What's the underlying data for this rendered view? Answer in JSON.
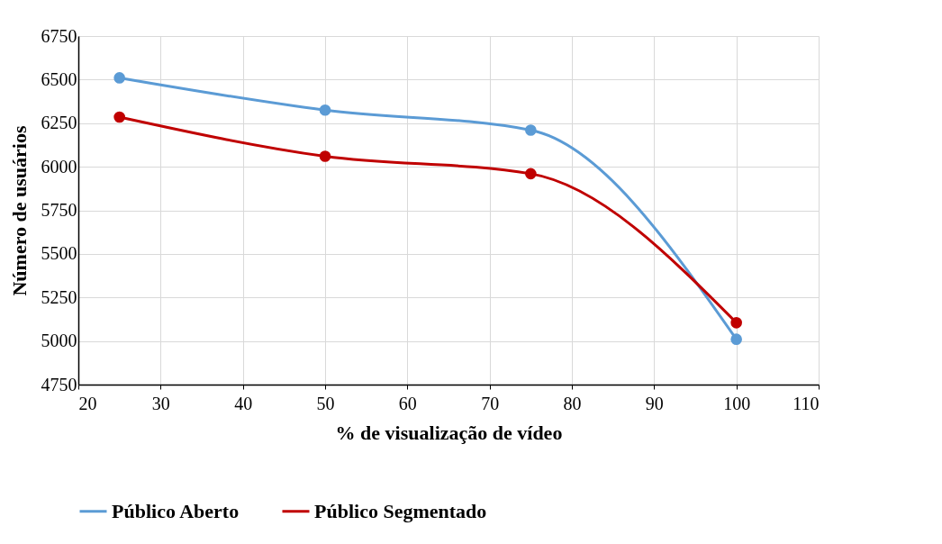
{
  "chart_data": {
    "type": "line",
    "xlabel": "% de visualização de vídeo",
    "ylabel": "Número de usuários",
    "x": [
      25,
      50,
      75,
      100
    ],
    "series": [
      {
        "name": "Público Aberto",
        "color": "#5b9bd5",
        "values": [
          6510,
          6325,
          6210,
          5010
        ]
      },
      {
        "name": "Público Segmentado",
        "color": "#c00000",
        "values": [
          6285,
          6060,
          5960,
          5105
        ]
      }
    ],
    "xlim": [
      20,
      110
    ],
    "xticks": [
      20,
      30,
      40,
      50,
      60,
      70,
      80,
      90,
      100,
      110
    ],
    "ylim": [
      4750,
      6750
    ],
    "yticks": [
      4750,
      5000,
      5250,
      5500,
      5750,
      6000,
      6250,
      6500,
      6750
    ],
    "grid": true,
    "legend": "bottom",
    "marker": "circle",
    "line_style": "solid"
  }
}
